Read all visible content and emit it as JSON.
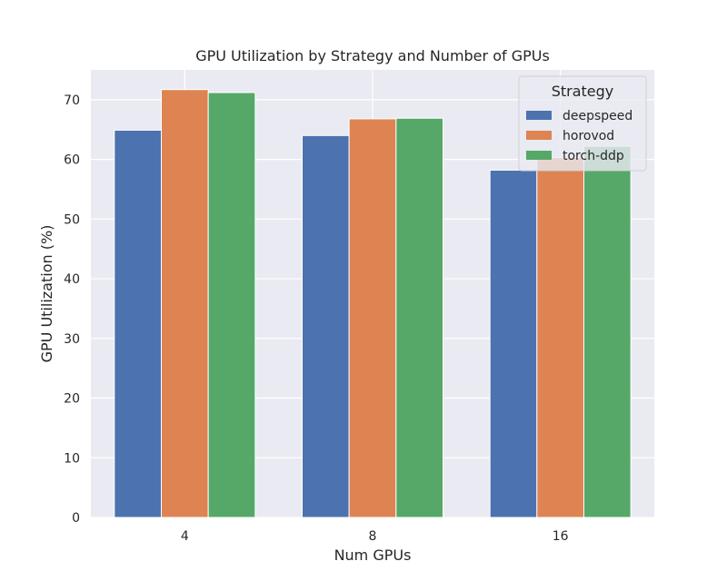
{
  "chart_data": {
    "type": "bar",
    "title": "GPU Utilization by Strategy and Number of GPUs",
    "xlabel": "Num GPUs",
    "ylabel": "GPU Utilization (%)",
    "categories": [
      "4",
      "8",
      "16"
    ],
    "ylim": [
      0,
      75
    ],
    "yticks": [
      0,
      10,
      20,
      30,
      40,
      50,
      60,
      70
    ],
    "grid": true,
    "legend": {
      "title": "Strategy",
      "placement": "top-right"
    },
    "series": [
      {
        "name": "deepspeed",
        "color": "#4C72B0",
        "values": [
          64.9,
          64.0,
          58.2
        ]
      },
      {
        "name": "horovod",
        "color": "#DD8452",
        "values": [
          71.7,
          66.8,
          60.3
        ]
      },
      {
        "name": "torch-ddp",
        "color": "#55A868",
        "values": [
          71.2,
          66.9,
          62.2
        ]
      }
    ]
  }
}
